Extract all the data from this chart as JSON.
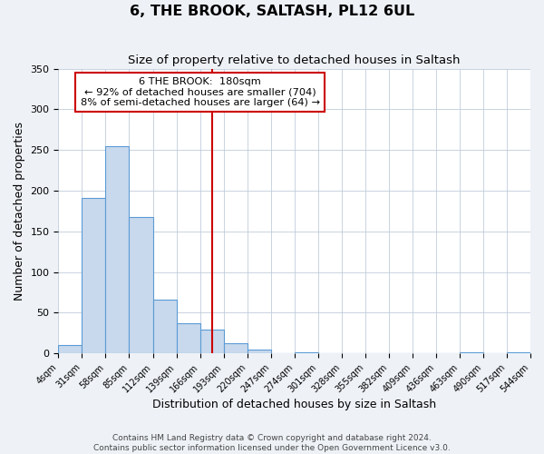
{
  "title": "6, THE BROOK, SALTASH, PL12 6UL",
  "subtitle": "Size of property relative to detached houses in Saltash",
  "xlabel": "Distribution of detached houses by size in Saltash",
  "ylabel": "Number of detached properties",
  "bin_edges": [
    4,
    31,
    58,
    85,
    112,
    139,
    166,
    193,
    220,
    247,
    274,
    301,
    328,
    355,
    382,
    409,
    436,
    463,
    490,
    517,
    544
  ],
  "bar_heights": [
    10,
    191,
    255,
    168,
    66,
    37,
    29,
    13,
    5,
    0,
    2,
    0,
    0,
    0,
    0,
    0,
    0,
    2,
    0,
    2
  ],
  "bar_color": "#c8d9ed",
  "bar_edge_color": "#5b9bd5",
  "property_size": 180,
  "annotation_line_color": "#cc0000",
  "annotation_box_color": "#cc0000",
  "annotation_text_line1": "6 THE BROOK:  180sqm",
  "annotation_text_line2": "← 92% of detached houses are smaller (704)",
  "annotation_text_line3": "8% of semi-detached houses are larger (64) →",
  "ylim": [
    0,
    350
  ],
  "yticks": [
    0,
    50,
    100,
    150,
    200,
    250,
    300,
    350
  ],
  "tick_labels": [
    "4sqm",
    "31sqm",
    "58sqm",
    "85sqm",
    "112sqm",
    "139sqm",
    "166sqm",
    "193sqm",
    "220sqm",
    "247sqm",
    "274sqm",
    "301sqm",
    "328sqm",
    "355sqm",
    "382sqm",
    "409sqm",
    "436sqm",
    "463sqm",
    "490sqm",
    "517sqm",
    "544sqm"
  ],
  "footer_line1": "Contains HM Land Registry data © Crown copyright and database right 2024.",
  "footer_line2": "Contains public sector information licensed under the Open Government Licence v3.0.",
  "background_color": "#eef2f7",
  "plot_background_color": "#ffffff",
  "grid_color": "#c0ccda"
}
